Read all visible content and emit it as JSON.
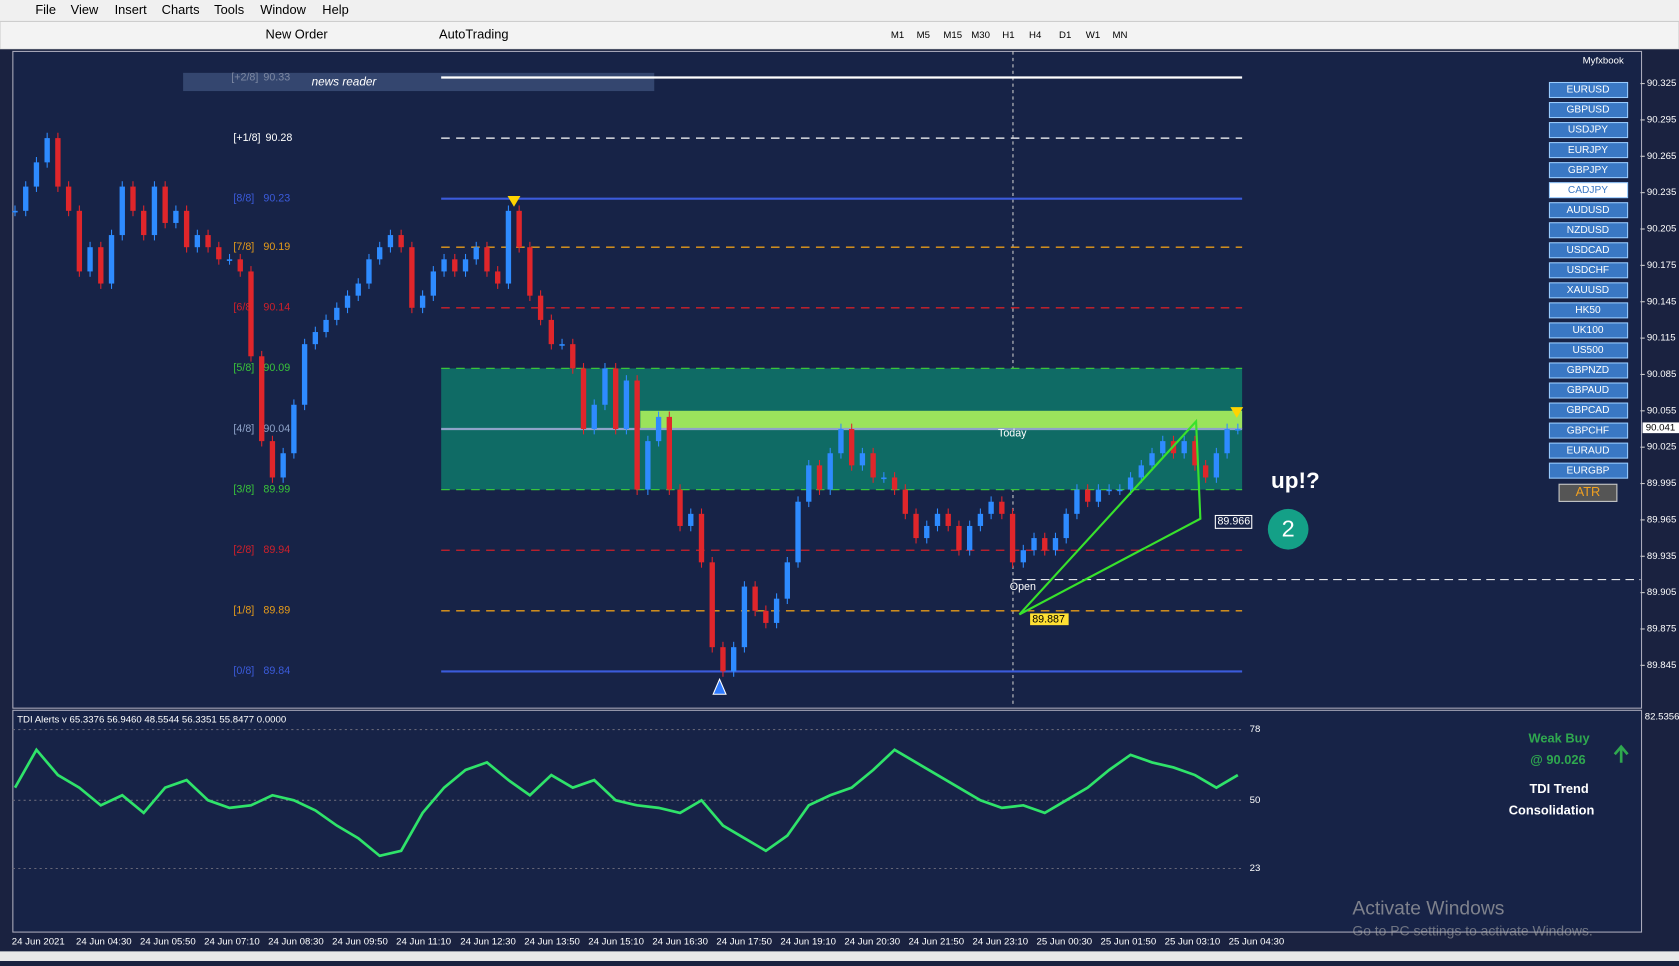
{
  "window": {
    "menu": [
      "File",
      "View",
      "Insert",
      "Charts",
      "Tools",
      "Window",
      "Help"
    ],
    "toolbar": {
      "new_order": "New Order",
      "autotrading": "AutoTrading",
      "timeframes": [
        "M1",
        "M5",
        "M15",
        "M30",
        "H1",
        "H4",
        "D1",
        "W1",
        "MN"
      ]
    }
  },
  "chart": {
    "myfxbook": "Myfxbook",
    "news_reader": "news reader",
    "price_axis": {
      "ylim": [
        90.325,
        89.815
      ],
      "ticks": [
        90.325,
        90.295,
        90.265,
        90.235,
        90.205,
        90.175,
        90.145,
        90.115,
        90.085,
        90.055,
        90.025,
        89.995,
        89.965,
        89.935,
        89.905,
        89.875,
        89.845
      ],
      "current": 90.041
    },
    "murrey_levels": [
      {
        "label": "[+2/8]",
        "value": 90.33,
        "color": "#ffffff"
      },
      {
        "label": "[+1/8]",
        "value": 90.28,
        "color": "#ffffff"
      },
      {
        "label": "[8/8]",
        "value": 90.23,
        "color": "#3b5bdb"
      },
      {
        "label": "[7/8]",
        "value": 90.19,
        "color": "#e69b1a"
      },
      {
        "label": "[6/8]",
        "value": 90.14,
        "color": "#d0202a"
      },
      {
        "label": "[5/8]",
        "value": 90.09,
        "color": "#39c43a"
      },
      {
        "label": "[4/8]",
        "value": 90.04,
        "color": "#8fa3c8"
      },
      {
        "label": "[3/8]",
        "value": 89.99,
        "color": "#39c43a"
      },
      {
        "label": "[2/8]",
        "value": 89.94,
        "color": "#d0202a"
      },
      {
        "label": "[1/8]",
        "value": 89.89,
        "color": "#e69b1a"
      },
      {
        "label": "[0/8]",
        "value": 89.84,
        "color": "#3b5bdb"
      }
    ],
    "closes": [
      90.22,
      90.24,
      90.26,
      90.28,
      90.24,
      90.22,
      90.17,
      90.19,
      90.16,
      90.2,
      90.24,
      90.22,
      90.2,
      90.24,
      90.21,
      90.22,
      90.19,
      90.2,
      90.19,
      90.18,
      90.18,
      90.17,
      90.1,
      90.03,
      90.0,
      90.02,
      90.06,
      90.11,
      90.12,
      90.13,
      90.14,
      90.15,
      90.16,
      90.18,
      90.19,
      90.2,
      90.19,
      90.14,
      90.15,
      90.17,
      90.18,
      90.17,
      90.18,
      90.19,
      90.17,
      90.16,
      90.22,
      90.19,
      90.15,
      90.13,
      90.11,
      90.11,
      90.09,
      90.04,
      90.06,
      90.09,
      90.04,
      90.08,
      89.99,
      90.03,
      90.05,
      89.99,
      89.96,
      89.97,
      89.93,
      89.86,
      89.84,
      89.86,
      89.91,
      89.89,
      89.88,
      89.9,
      89.93,
      89.98,
      90.01,
      89.99,
      90.02,
      90.04,
      90.01,
      90.02,
      90.0,
      90.0,
      89.99,
      89.97,
      89.95,
      89.96,
      89.97,
      89.96,
      89.94,
      89.96,
      89.97,
      89.98,
      89.97,
      89.93,
      89.94,
      89.95,
      89.94,
      89.95,
      89.97,
      89.99,
      89.98,
      89.99,
      89.99,
      89.99,
      90.0,
      90.01,
      90.02,
      90.03,
      90.02,
      90.03,
      90.01,
      90.0,
      90.02,
      90.04,
      90.04
    ],
    "annotations": {
      "today": "Today",
      "open": "Open",
      "low_label": 89.887,
      "mid_label": 89.966,
      "question": "up!?",
      "badge": "2"
    },
    "symbols": [
      "EURUSD",
      "GBPUSD",
      "USDJPY",
      "EURJPY",
      "GBPJPY",
      "CADJPY",
      "AUDUSD",
      "NZDUSD",
      "USDCAD",
      "USDCHF",
      "XAUUSD",
      "HK50",
      "UK100",
      "US500",
      "GBPNZD",
      "GBPAUD",
      "GBPCAD",
      "GBPCHF",
      "EURAUD",
      "EURGBP"
    ],
    "selected_symbol": "CADJPY",
    "atr": "ATR",
    "time_labels": [
      "24 Jun 2021",
      "24 Jun 04:30",
      "24 Jun 05:50",
      "24 Jun 07:10",
      "24 Jun 08:30",
      "24 Jun 09:50",
      "24 Jun 11:10",
      "24 Jun 12:30",
      "24 Jun 13:50",
      "24 Jun 15:10",
      "24 Jun 16:30",
      "24 Jun 17:50",
      "24 Jun 19:10",
      "24 Jun 20:30",
      "24 Jun 21:50",
      "24 Jun 23:10",
      "25 Jun 00:30",
      "25 Jun 01:50",
      "25 Jun 03:10",
      "25 Jun 04:30"
    ]
  },
  "tdi": {
    "header": "TDI Alerts v 65.3376 56.9460 48.5544 56.3351 55.8477 0.0000",
    "axis_top": 82.5356,
    "levels": [
      78,
      50,
      23
    ],
    "values": [
      55,
      70,
      60,
      55,
      48,
      52,
      45,
      55,
      58,
      50,
      47,
      48,
      52,
      50,
      46,
      40,
      35,
      28,
      30,
      45,
      55,
      62,
      65,
      58,
      52,
      60,
      55,
      58,
      50,
      48,
      47,
      45,
      50,
      40,
      35,
      30,
      36,
      48,
      52,
      55,
      62,
      70,
      65,
      60,
      55,
      50,
      47,
      48,
      45,
      50,
      55,
      62,
      68,
      65,
      63,
      60,
      55,
      60
    ],
    "signal": "Weak Buy",
    "signal_price": "@ 90.026",
    "trend_title": "TDI Trend",
    "trend": "Consolidation"
  },
  "watermark": {
    "title": "Activate Windows",
    "subtitle": "Go to PC settings to activate Windows."
  }
}
